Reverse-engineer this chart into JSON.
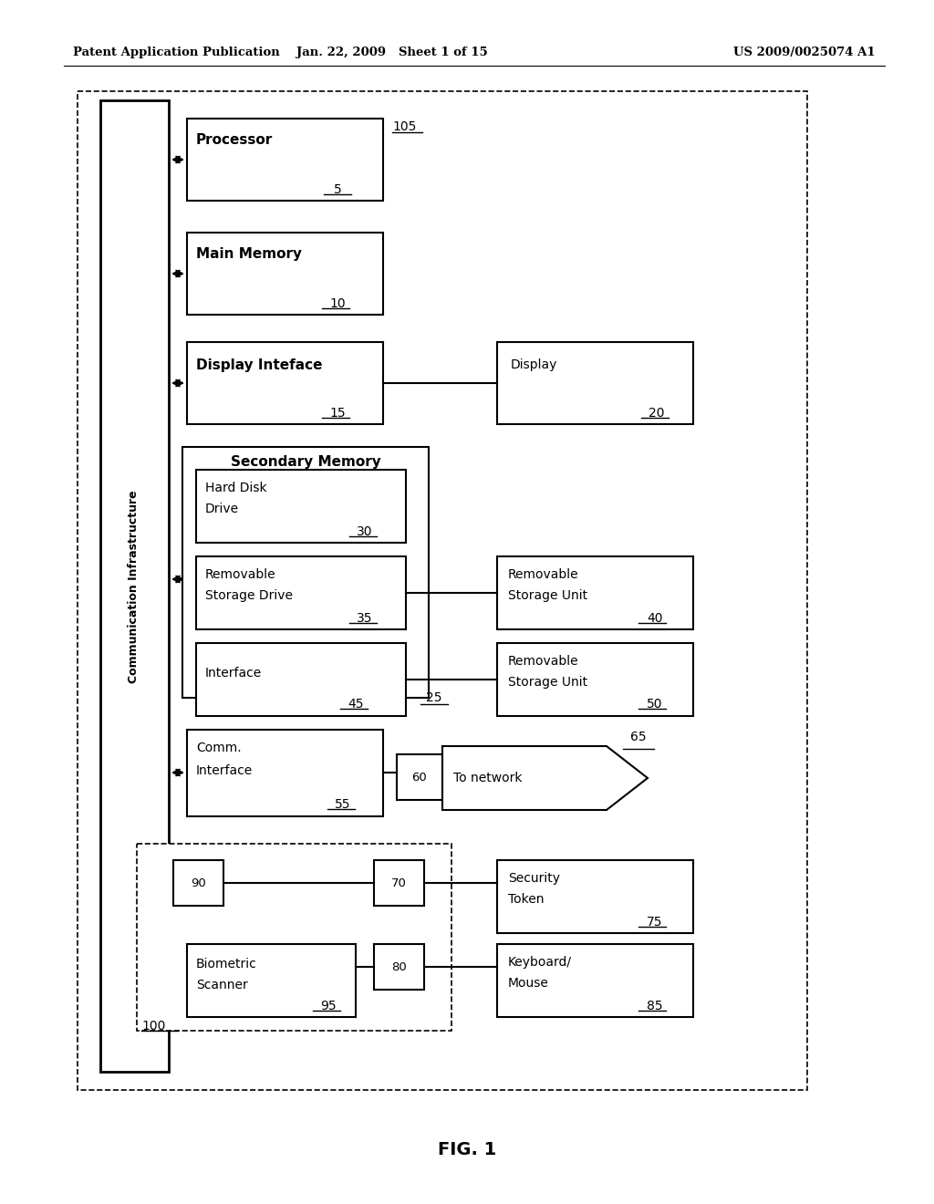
{
  "bg_color": "#ffffff",
  "header_left": "Patent Application Publication",
  "header_mid": "Jan. 22, 2009   Sheet 1 of 15",
  "header_right": "US 2009/0025074 A1",
  "footer_label": "FIG. 1",
  "fig_w": 10.24,
  "fig_h": 13.2,
  "dpi": 100
}
